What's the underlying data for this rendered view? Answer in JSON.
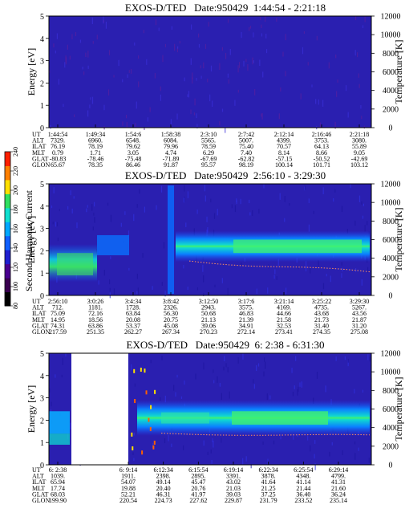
{
  "colorbar": {
    "label": "Second Harmonic Current",
    "ticks": [
      "240",
      "220",
      "200",
      "180",
      "160",
      "140",
      "120",
      "100",
      "80"
    ],
    "colors": [
      "#000000",
      "#3a0050",
      "#4a0090",
      "#1f1fd0",
      "#1060ff",
      "#00a8ff",
      "#10e0d0",
      "#30e060",
      "#ffe000",
      "#ff8000",
      "#ff2000"
    ]
  },
  "chart_data": [
    {
      "type": "heatmap",
      "title": "EXOS-D/TED   Date:950429  1:44:54 - 2:21:18",
      "ylabel": "Energy [eV]",
      "y2label": "Temperature [K]",
      "ylim": [
        0,
        5
      ],
      "y2lim": [
        0,
        12000
      ],
      "yticks": [
        "0",
        "1",
        "2",
        "3",
        "4",
        "5"
      ],
      "y2ticks": [
        "0",
        "2000",
        "4000",
        "6000",
        "8000",
        "10000",
        "12000"
      ],
      "background": "#2a1fb0",
      "ephemeris": {
        "labels": [
          "UT",
          "ALT",
          "ILAT",
          "MLT",
          "GLAT",
          "GLON"
        ],
        "columns": [
          [
            "1:44:54",
            "7329.",
            "76.19",
            "0.79",
            "-80.83",
            "65.67"
          ],
          [
            "1:49:34",
            "6960.",
            "78.19",
            "1.71",
            "-78.46",
            "78.35"
          ],
          [
            "1:54:6",
            "6548.",
            "79.62",
            "3.05",
            "-75.48",
            "86.46"
          ],
          [
            "1:58:38",
            "6084.",
            "79.96",
            "4.74",
            "-71.89",
            "91.87"
          ],
          [
            "2:3:10",
            "5565.",
            "78.59",
            "6.29",
            "-67.69",
            "95.57"
          ],
          [
            "2:7:42",
            "5007.",
            "75.40",
            "7.40",
            "-62.82",
            "98.19"
          ],
          [
            "2:12:14",
            "4399.",
            "70.57",
            "8.14",
            "-57.15",
            "100.14"
          ],
          [
            "2:16:46",
            "3753.",
            "64.13",
            "8.66",
            "-50.52",
            "101.71"
          ],
          [
            "2:21:18",
            "3080.",
            "55.89",
            "9.05",
            "-42.69",
            "103.12"
          ]
        ]
      }
    },
    {
      "type": "heatmap",
      "title": "EXOS-D/TED   Date:950429  2:56:10 - 3:29:30",
      "ylabel": "Energy [eV]",
      "y2label": "Temperature [K]",
      "ylim": [
        0,
        5
      ],
      "y2lim": [
        0,
        12000
      ],
      "yticks": [
        "0",
        "1",
        "2",
        "3",
        "4",
        "5"
      ],
      "y2ticks": [
        "0",
        "2000",
        "4000",
        "6000",
        "8000",
        "10000",
        "12000"
      ],
      "background": "#2a1fb0",
      "band_center_ev": 2.2,
      "ephemeris": {
        "labels": [
          "UT",
          "ALT",
          "ILAT",
          "MLT",
          "GLAT",
          "GLON"
        ],
        "columns": [
          [
            "2:56:10",
            "712.",
            "75.09",
            "14.95",
            "74.31",
            "217.59"
          ],
          [
            "3:0:26",
            "1181.",
            "72.16",
            "18.56",
            "63.86",
            "251.35"
          ],
          [
            "3:4:34",
            "1728.",
            "63.84",
            "20.08",
            "53.37",
            "262.27"
          ],
          [
            "3:8:42",
            "2326.",
            "56.30",
            "20.75",
            "45.08",
            "267.34"
          ],
          [
            "3:12:50",
            "2943.",
            "50.68",
            "21.13",
            "39.06",
            "270.23"
          ],
          [
            "3:17:6",
            "3575.",
            "46.83",
            "21.39",
            "34.91",
            "272.14"
          ],
          [
            "3:21:14",
            "4169.",
            "44.66",
            "21.58",
            "32.53",
            "273.41"
          ],
          [
            "3:25:22",
            "4735.",
            "43.68",
            "21.73",
            "31.40",
            "274.35"
          ],
          [
            "3:29:30",
            "5267.",
            "43.56",
            "21.87",
            "31.20",
            "275.08"
          ]
        ]
      }
    },
    {
      "type": "heatmap",
      "title": "EXOS-D/TED   Date:950429  6: 2:38 - 6:31:30",
      "ylabel": "Energy [eV]",
      "y2label": "Temperature [K]",
      "ylim": [
        0,
        5
      ],
      "y2lim": [
        0,
        12000
      ],
      "yticks": [
        "0",
        "1",
        "2",
        "3",
        "4",
        "5"
      ],
      "y2ticks": [
        "0",
        "2000",
        "4000",
        "6000",
        "8000",
        "10000",
        "12000"
      ],
      "background": "#2a1fb0",
      "band_center_ev": 2.1,
      "ephemeris": {
        "labels": [
          "UT",
          "ALT",
          "ILAT",
          "MLT",
          "GLAT",
          "GLON"
        ],
        "columns": [
          [
            "6: 2:38",
            "1039.",
            "65.94",
            "17.74",
            "68.03",
            "199.90"
          ],
          [
            "6: 9:14",
            "1911.",
            "54.07",
            "19.88",
            "52.21",
            "220.54"
          ],
          [
            "6:12:34",
            "2398.",
            "49.14",
            "20.40",
            "46.31",
            "224.73"
          ],
          [
            "6:15:54",
            "2895.",
            "45.47",
            "20.76",
            "41.97",
            "227.62"
          ],
          [
            "6:19:14",
            "3391.",
            "43.02",
            "21.03",
            "39.03",
            "229.87"
          ],
          [
            "6:22:34",
            "3878.",
            "41.64",
            "21.25",
            "37.25",
            "231.79"
          ],
          [
            "6:25:54",
            "4348.",
            "41.14",
            "21.44",
            "36.40",
            "233.52"
          ],
          [
            "6:29:14",
            "4799.",
            "41.31",
            "21.60",
            "36.24",
            "235.14"
          ]
        ]
      }
    }
  ]
}
